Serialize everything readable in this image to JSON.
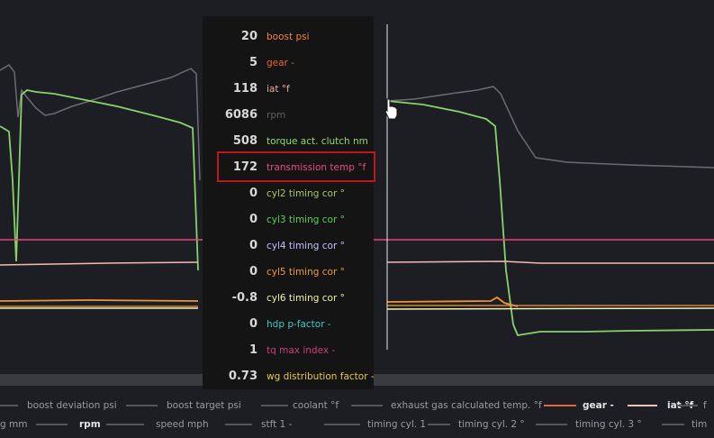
{
  "tooltip": {
    "rows": [
      {
        "value": 20,
        "label": "boost psi",
        "color": "#f0883e"
      },
      {
        "value": 5,
        "label": "gear -",
        "color": "#e8662f"
      },
      {
        "value": 118,
        "label": "iat °f",
        "color": "#f4a8a0"
      },
      {
        "value": 6086,
        "label": "rpm",
        "color": "#5e5f66"
      },
      {
        "value": 508,
        "label": "torque act. clutch nm",
        "color": "#8fdc6f"
      },
      {
        "value": 172,
        "label": "transmission temp °f",
        "color": "#ee4a80"
      },
      {
        "value": 0,
        "label": "cyl2 timing cor °",
        "color": "#a9c46c"
      },
      {
        "value": 0,
        "label": "cyl3 timing cor °",
        "color": "#5ad15a"
      },
      {
        "value": 0,
        "label": "cyl4 timing cor °",
        "color": "#c2c2ff"
      },
      {
        "value": 0,
        "label": "cyl5 timing cor °",
        "color": "#f09a3e"
      },
      {
        "value": -0.8,
        "label": "cyl6 timing cor °",
        "color": "#f2f2b0"
      },
      {
        "value": 0,
        "label": "hdp p-factor -",
        "color": "#3ec8c8"
      },
      {
        "value": 1,
        "label": "tq max index -",
        "color": "#c8407a"
      },
      {
        "value": 0.73,
        "label": "wg distribution factor -",
        "color": "#e8c84a"
      }
    ]
  },
  "legend": {
    "rows": [
      [
        {
          "label": "boost deviation psi"
        },
        {
          "label": "boost target psi"
        },
        {
          "label": "coolant °f"
        },
        {
          "label": "exhaust gas calculated temp. °f"
        },
        {
          "label": "gear -",
          "color": "#e8662f",
          "bold": true
        },
        {
          "label": "iat °f",
          "color": "#f4c0b8",
          "bold": true
        },
        {
          "label": "f"
        }
      ],
      [
        {
          "label": "g mm"
        },
        {
          "label": "rpm",
          "bold": true
        },
        {
          "label": "speed mph"
        },
        {
          "label": "stft 1 -"
        },
        {
          "label": "timing cyl. 1"
        },
        {
          "label": "timing cyl. 2 °"
        },
        {
          "label": "timing cyl. 3 °"
        },
        {
          "label": "tim"
        }
      ]
    ]
  }
}
